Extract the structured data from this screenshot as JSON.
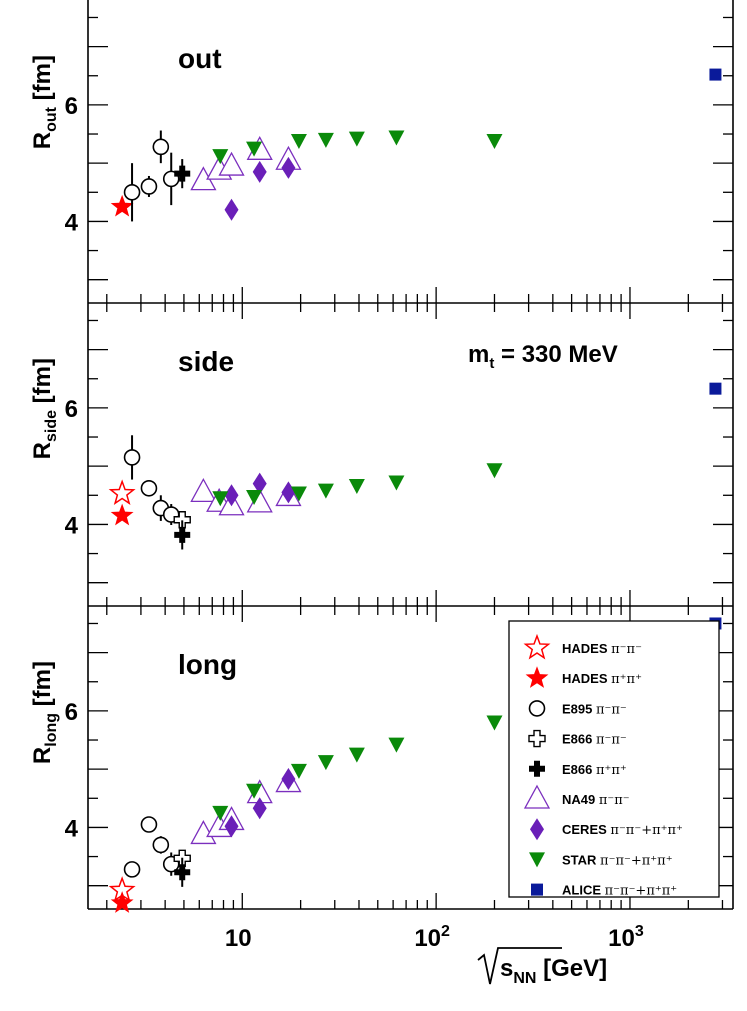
{
  "chart_data": {
    "type": "scatter",
    "x_label": {
      "base": "√s",
      "sub": "NN",
      "unit": "[GeV]"
    },
    "x_scale": "log",
    "xlim": [
      1.6,
      3400
    ],
    "x_ticks": [
      {
        "value": 10,
        "base": "10",
        "exp": ""
      },
      {
        "value": 100,
        "base": "10",
        "exp": "2"
      },
      {
        "value": 1000,
        "base": "10",
        "exp": "3"
      }
    ],
    "annotation": {
      "base": "m",
      "sub": "t",
      "rest": " = 330 MeV"
    },
    "colors": {
      "hades": "#ff0000",
      "e895": "#000000",
      "e866": "#000000",
      "na49": "#7b2fbe",
      "ceres": "#6a1fb8",
      "star": "#0a8a0a",
      "alice": "#0a1a9a"
    },
    "panels": [
      {
        "name": "out",
        "title": "out",
        "ylabel": {
          "base": "R",
          "sub": "out",
          "unit": " [fm]"
        },
        "ylim": [
          2.6,
          7.8
        ],
        "y_ticks": [
          4,
          6
        ],
        "series": [
          {
            "key": "hades_mm",
            "points": []
          },
          {
            "key": "hades_pp",
            "points": [
              [
                2.4,
                4.25
              ]
            ]
          },
          {
            "key": "e895",
            "points": [
              [
                2.7,
                4.5,
                0.5
              ],
              [
                3.3,
                4.6,
                0.18
              ],
              [
                3.8,
                5.28,
                0.28
              ],
              [
                4.3,
                4.73,
                0.45
              ]
            ]
          },
          {
            "key": "e866_mm",
            "points": []
          },
          {
            "key": "e866_pp",
            "points": [
              [
                4.9,
                4.82,
                0.25
              ]
            ]
          },
          {
            "key": "na49",
            "points": [
              [
                6.3,
                4.7
              ],
              [
                7.6,
                4.88
              ],
              [
                8.8,
                4.95
              ],
              [
                12.3,
                5.22
              ],
              [
                17.3,
                5.05
              ]
            ]
          },
          {
            "key": "ceres",
            "points": [
              [
                8.8,
                4.2
              ],
              [
                12.3,
                4.85
              ],
              [
                17.3,
                4.92
              ]
            ]
          },
          {
            "key": "star",
            "points": [
              [
                7.7,
                5.12
              ],
              [
                11.5,
                5.25
              ],
              [
                19.6,
                5.38
              ],
              [
                27,
                5.4
              ],
              [
                39,
                5.42
              ],
              [
                62.4,
                5.44
              ],
              [
                200,
                5.38
              ]
            ]
          },
          {
            "key": "alice",
            "points": [
              [
                2760,
                6.52
              ]
            ]
          }
        ]
      },
      {
        "name": "side",
        "title": "side",
        "ylabel": {
          "base": "R",
          "sub": "side",
          "unit": " [fm]"
        },
        "ylim": [
          2.6,
          7.8
        ],
        "y_ticks": [
          4,
          6
        ],
        "series": [
          {
            "key": "hades_mm",
            "points": [
              [
                2.4,
                4.53
              ]
            ]
          },
          {
            "key": "hades_pp",
            "points": [
              [
                2.4,
                4.15
              ]
            ]
          },
          {
            "key": "e895",
            "points": [
              [
                2.7,
                5.15,
                0.38
              ],
              [
                3.3,
                4.62,
                0.12
              ],
              [
                3.8,
                4.28,
                0.22
              ],
              [
                4.3,
                4.17,
                0.18
              ]
            ]
          },
          {
            "key": "e866_mm",
            "points": [
              [
                4.9,
                4.08
              ]
            ]
          },
          {
            "key": "e866_pp",
            "points": [
              [
                4.9,
                3.82,
                0.25
              ]
            ]
          },
          {
            "key": "na49",
            "points": [
              [
                6.3,
                4.55
              ],
              [
                7.6,
                4.38
              ],
              [
                8.8,
                4.32
              ],
              [
                12.3,
                4.37
              ],
              [
                17.3,
                4.48
              ]
            ]
          },
          {
            "key": "ceres",
            "points": [
              [
                8.8,
                4.5
              ],
              [
                12.3,
                4.7
              ],
              [
                17.3,
                4.55
              ]
            ]
          },
          {
            "key": "star",
            "points": [
              [
                7.7,
                4.45
              ],
              [
                11.5,
                4.47
              ],
              [
                19.6,
                4.53
              ],
              [
                27,
                4.58
              ],
              [
                39,
                4.66
              ],
              [
                62.4,
                4.72
              ],
              [
                200,
                4.93
              ]
            ]
          },
          {
            "key": "alice",
            "points": [
              [
                2760,
                6.33
              ]
            ]
          }
        ]
      },
      {
        "name": "long",
        "title": "long",
        "ylabel": {
          "base": "R",
          "sub": "long",
          "unit": " [fm]"
        },
        "ylim": [
          2.6,
          7.8
        ],
        "y_ticks": [
          4,
          6
        ],
        "series": [
          {
            "key": "hades_mm",
            "points": [
              [
                2.4,
                2.92
              ]
            ]
          },
          {
            "key": "hades_pp",
            "points": [
              [
                2.4,
                2.7
              ]
            ]
          },
          {
            "key": "e895",
            "points": [
              [
                2.7,
                3.28,
                0.12
              ],
              [
                3.3,
                4.05,
                0.1
              ],
              [
                3.8,
                3.7,
                0.15
              ],
              [
                4.3,
                3.37,
                0.2
              ]
            ]
          },
          {
            "key": "e866_mm",
            "points": [
              [
                4.9,
                3.47
              ]
            ]
          },
          {
            "key": "e866_pp",
            "points": [
              [
                4.9,
                3.23,
                0.25
              ]
            ]
          },
          {
            "key": "na49",
            "points": [
              [
                6.3,
                3.88
              ],
              [
                7.6,
                4.0
              ],
              [
                8.8,
                4.12
              ],
              [
                12.3,
                4.58
              ],
              [
                17.3,
                4.77
              ]
            ]
          },
          {
            "key": "ceres",
            "points": [
              [
                8.8,
                4.02
              ],
              [
                12.3,
                4.33
              ],
              [
                17.3,
                4.83
              ]
            ]
          },
          {
            "key": "star",
            "points": [
              [
                7.7,
                4.25
              ],
              [
                11.5,
                4.63
              ],
              [
                19.6,
                4.97
              ],
              [
                27,
                5.12
              ],
              [
                39,
                5.25
              ],
              [
                62.4,
                5.42
              ],
              [
                200,
                5.8
              ]
            ]
          },
          {
            "key": "alice",
            "points": [
              [
                2760,
                7.5
              ]
            ]
          }
        ]
      }
    ],
    "legend": {
      "placement": "bottom-right of lower panel",
      "entries": [
        {
          "key": "hades_mm",
          "label": "HADES",
          "particles": "π⁻π⁻"
        },
        {
          "key": "hades_pp",
          "label": "HADES",
          "particles": "π⁺π⁺"
        },
        {
          "key": "e895",
          "label": "E895",
          "particles": "π⁻π⁻"
        },
        {
          "key": "e866_mm",
          "label": "E866",
          "particles": "π⁻π⁻"
        },
        {
          "key": "e866_pp",
          "label": "E866",
          "particles": "π⁺π⁺"
        },
        {
          "key": "na49",
          "label": "NA49",
          "particles": "π⁻π⁻"
        },
        {
          "key": "ceres",
          "label": "CERES",
          "particles": "π⁻π⁻+π⁺π⁺"
        },
        {
          "key": "star",
          "label": "STAR",
          "particles": "π⁻π⁻+π⁺π⁺"
        },
        {
          "key": "alice",
          "label": "ALICE",
          "particles": "π⁻π⁻+π⁺π⁺"
        }
      ]
    }
  }
}
